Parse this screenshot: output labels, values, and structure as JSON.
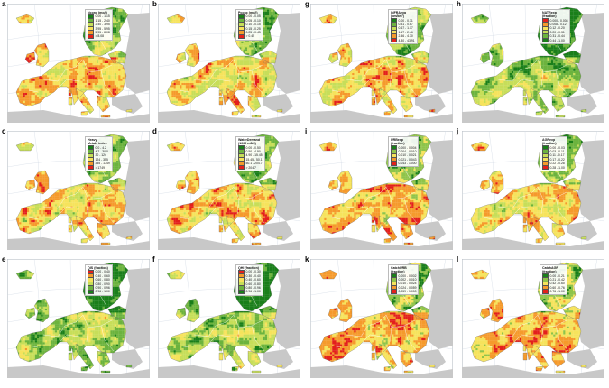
{
  "colors": {
    "sea": "#ffffff",
    "outside_land": "#c8c8c8",
    "graticule": "#d4dce6",
    "border": "#ffffff"
  },
  "palettes": {
    "g2r6": [
      "#1a7f1a",
      "#6cb33e",
      "#c7de59",
      "#f6e35c",
      "#f59a2c",
      "#e3201c"
    ],
    "g2r5": [
      "#1a7f1a",
      "#8fc44a",
      "#f6e35c",
      "#f59a2c",
      "#e3201c"
    ],
    "r2g6": [
      "#e3201c",
      "#f59a2c",
      "#f6e35c",
      "#c7de59",
      "#6cb33e",
      "#1a7f1a"
    ],
    "r2g5": [
      "#e3201c",
      "#f59a2c",
      "#f6e35c",
      "#8fc44a",
      "#1a7f1a"
    ]
  },
  "panels": [
    {
      "letter": "a",
      "title": [
        "Nconc (mg/l)"
      ],
      "labels": [
        "0.00 - 1.15",
        "1.15 - 2.40",
        "2.40 - 3.95",
        "3.95 - 5.95",
        "5.95 - 8.08",
        "> 8.08"
      ],
      "palette": "g2r6",
      "bias": 0.62
    },
    {
      "letter": "b",
      "title": [
        "Pconc (mg/l)"
      ],
      "labels": [
        "0.00 - 0.05",
        "0.05 - 0.10",
        "0.10 - 0.15",
        "0.15 - 0.25",
        "0.25 - 0.45",
        "> 0.45"
      ],
      "palette": "g2r6",
      "bias": 0.5
    },
    {
      "letter": "g",
      "title": [
        "INFRAexp",
        "(km/km²)"
      ],
      "labels": [
        "0.00 - 0.31",
        "0.31 - 0.67",
        "0.67 - 1.17",
        "1.17 - 2.46",
        "2.46 - 4.30",
        "4.30 - 43.91"
      ],
      "palette": "g2r6",
      "bias": 0.48
    },
    {
      "letter": "h",
      "title": [
        "NATRexp",
        "(fraction)"
      ],
      "labels": [
        "0.000 - 0.008",
        "0.008 - 0.12",
        "0.12 - 0.20",
        "0.20 - 0.31",
        "0.31 - 0.44",
        "0.44 - 1.00"
      ],
      "palette": "r2g6",
      "bias": 0.5
    },
    {
      "letter": "c",
      "title": [
        "Heavy",
        "Metals index"
      ],
      "labels": [
        "0.0 - 4.2",
        "4.2 - 30.0",
        "30 - 124",
        "124 - 355",
        "355 - 1749",
        "> 1749"
      ],
      "palette": "g2r6",
      "bias": 0.48
    },
    {
      "letter": "d",
      "title": [
        "WaterDemand",
        "(1000 m3/d)"
      ],
      "labels": [
        "0.00 - 0.50",
        "0.50 - 4.90",
        "4.90 - 15.45",
        "15.45 - 50.1",
        "50.1 - 204.7",
        "> 204.7"
      ],
      "palette": "g2r6",
      "bias": 0.55
    },
    {
      "letter": "i",
      "title": [
        "URBexp",
        "(fraction)"
      ],
      "labels": [
        "0.000 - 0.004",
        "0.004 - 0.010",
        "0.010 - 0.021",
        "0.021 - 0.043",
        "0.043 - 1.000"
      ],
      "palette": "g2r5",
      "bias": 0.5
    },
    {
      "letter": "j",
      "title": [
        "AGRexp",
        "(fraction)"
      ],
      "labels": [
        "0.00 - 0.03",
        "0.03 - 0.11",
        "0.11 - 0.17",
        "0.17 - 0.22",
        "0.22 - 0.28",
        "0.28 - 1.00"
      ],
      "palette": "g2r6",
      "bias": 0.48
    },
    {
      "letter": "e",
      "title": [
        "QIS (fraction)"
      ],
      "labels": [
        "0.00 - 0.40",
        "0.40 - 0.60",
        "0.60 - 0.80",
        "0.80 - 0.90",
        "0.90 - 0.96",
        "0.96 - 1.00"
      ],
      "palette": "r2g6",
      "bias": 0.52
    },
    {
      "letter": "f",
      "title": [
        "QHI (fraction)"
      ],
      "labels": [
        "0.00 - 0.30",
        "0.30 - 0.40",
        "0.40 - 0.60",
        "0.60 - 0.80",
        "0.80 - 0.96",
        "0.96 - 1.00"
      ],
      "palette": "r2g6",
      "bias": 0.5
    },
    {
      "letter": "k",
      "title": [
        "CatchURB",
        "(fraction)"
      ],
      "labels": [
        "0.000 - 0.002",
        "0.002 - 0.010",
        "0.010 - 0.024",
        "0.024 - 0.059",
        "0.059 - 1.000"
      ],
      "palette": "g2r5",
      "bias": 0.55
    },
    {
      "letter": "l",
      "title": [
        "CatchAGR",
        "(fraction)"
      ],
      "labels": [
        "0.00 - 0.21",
        "0.21 - 0.42",
        "0.42 - 0.60",
        "0.60 - 0.76",
        "0.76 - 1.00"
      ],
      "palette": "g2r5",
      "bias": 0.55
    }
  ]
}
